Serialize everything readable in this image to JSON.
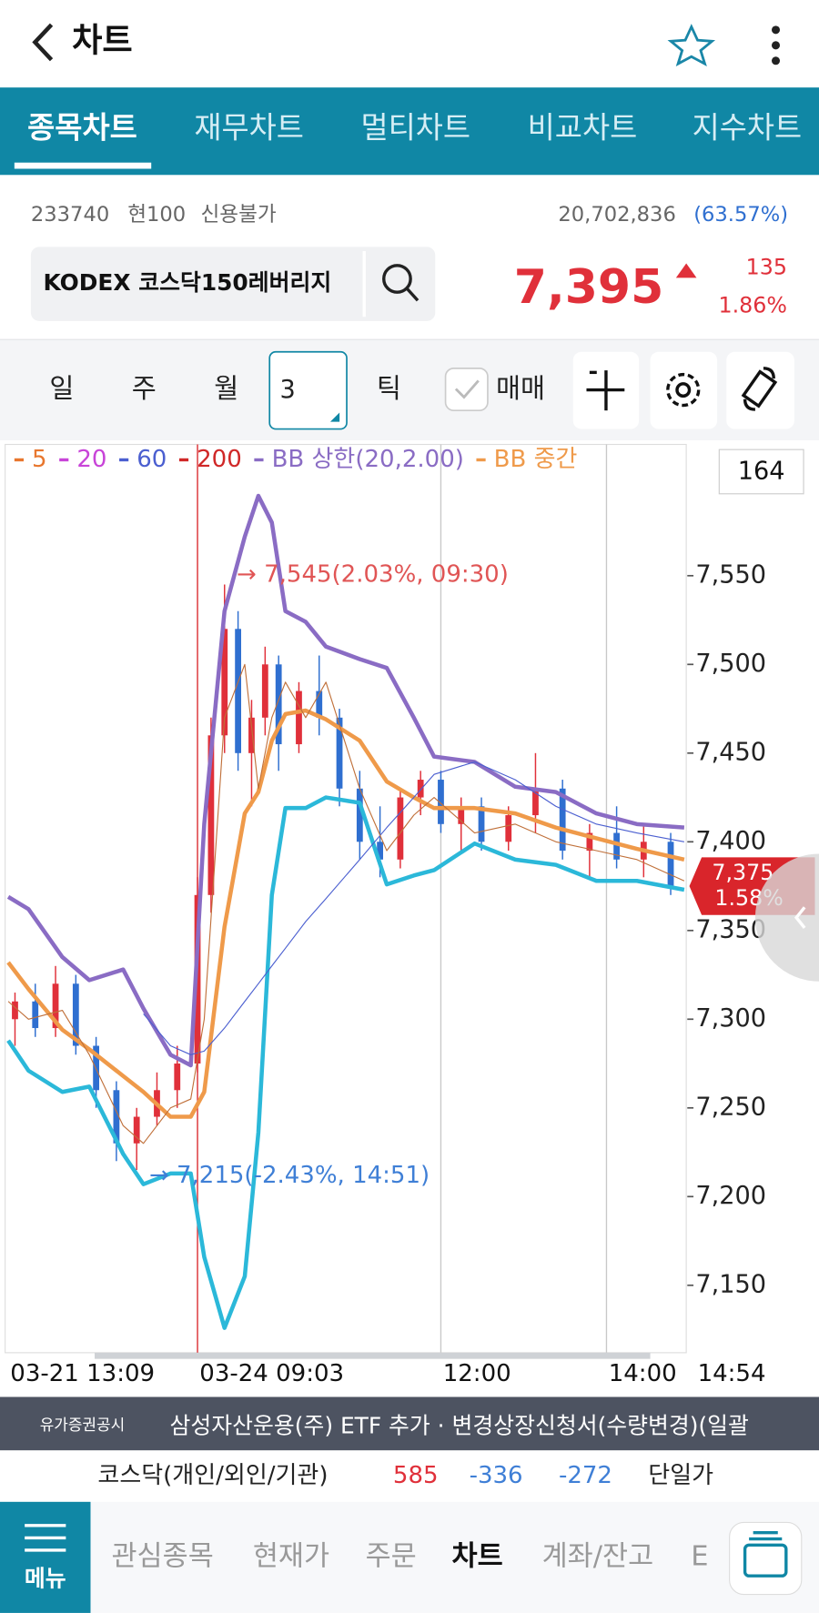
{
  "header": {
    "title": "차트"
  },
  "tabs": [
    "종목차트",
    "재무차트",
    "멀티차트",
    "비교차트",
    "지수차트"
  ],
  "stock": {
    "code": "233740",
    "unit": "현100",
    "credit": "신용불가",
    "volume": "20,702,836",
    "volume_ratio": "(63.57%)",
    "name": "KODEX 코스닥150레버리지",
    "price": "7,395",
    "change": "135",
    "change_pct": "1.86%"
  },
  "periods": [
    "일",
    "주",
    "월",
    "3",
    "틱",
    "매매"
  ],
  "chart_data": {
    "type": "candlestick",
    "count": "164",
    "legend": [
      {
        "name": "5",
        "color": "#e8772e"
      },
      {
        "name": "20",
        "color": "#c844d8"
      },
      {
        "name": "60",
        "color": "#4b5fd0"
      },
      {
        "name": "200",
        "color": "#d02828"
      },
      {
        "name": "BB 상한(20,2.00)",
        "color": "#8a6cc4"
      },
      {
        "name": "BB 중간",
        "color": "#ef9a4a"
      }
    ],
    "xlim": [
      0,
      100
    ],
    "ylim": [
      7112,
      7624
    ],
    "xticks": [
      {
        "value": 0,
        "label": "03-21 13:09"
      },
      {
        "value": 28,
        "label": "03-24 09:03"
      },
      {
        "value": 64,
        "label": "12:00"
      },
      {
        "value": 88.5,
        "label": "14:00"
      },
      {
        "value": 100,
        "label": "14:54"
      }
    ],
    "yticks": [
      {
        "value": 7150,
        "label": "7,150"
      },
      {
        "value": 7200,
        "label": "7,200"
      },
      {
        "value": 7250,
        "label": "7,250"
      },
      {
        "value": 7300,
        "label": "7,300"
      },
      {
        "value": 7350,
        "label": "7,350"
      },
      {
        "value": 7400,
        "label": "7,400"
      },
      {
        "value": 7450,
        "label": "7,450"
      },
      {
        "value": 7500,
        "label": "7,500"
      },
      {
        "value": 7550,
        "label": "7,550"
      }
    ],
    "candles": {
      "up_color": "#e0303a",
      "down_color": "#2f6fd0",
      "x": [
        1,
        4,
        7,
        10,
        13,
        16,
        19,
        22,
        25,
        28,
        30,
        32,
        34,
        36,
        38,
        40,
        43,
        46,
        49,
        52,
        55,
        58,
        61,
        64,
        67,
        70,
        74,
        78,
        82,
        86,
        90,
        94,
        98
      ],
      "open": [
        7300,
        7310,
        7295,
        7320,
        7285,
        7260,
        7230,
        7245,
        7260,
        7275,
        7370,
        7460,
        7520,
        7450,
        7470,
        7500,
        7455,
        7485,
        7470,
        7430,
        7400,
        7390,
        7425,
        7435,
        7410,
        7420,
        7400,
        7415,
        7430,
        7395,
        7405,
        7390,
        7400
      ],
      "high": [
        7315,
        7320,
        7330,
        7325,
        7290,
        7265,
        7250,
        7270,
        7285,
        7380,
        7470,
        7545,
        7530,
        7480,
        7510,
        7505,
        7490,
        7505,
        7475,
        7440,
        7420,
        7430,
        7440,
        7440,
        7425,
        7425,
        7420,
        7450,
        7435,
        7410,
        7420,
        7410,
        7405
      ],
      "low": [
        7285,
        7290,
        7290,
        7280,
        7250,
        7220,
        7215,
        7240,
        7250,
        7270,
        7360,
        7450,
        7440,
        7420,
        7460,
        7440,
        7450,
        7460,
        7420,
        7390,
        7380,
        7385,
        7415,
        7405,
        7395,
        7395,
        7395,
        7405,
        7390,
        7380,
        7385,
        7380,
        7370
      ],
      "close": [
        7310,
        7295,
        7320,
        7285,
        7260,
        7230,
        7245,
        7260,
        7275,
        7370,
        7460,
        7520,
        7450,
        7470,
        7500,
        7455,
        7485,
        7470,
        7430,
        7400,
        7390,
        7425,
        7435,
        7410,
        7420,
        7400,
        7415,
        7430,
        7395,
        7405,
        7390,
        7400,
        7375
      ]
    },
    "x": [
      0,
      3,
      8,
      12,
      17,
      20,
      24,
      27,
      29,
      32,
      35,
      37,
      39,
      41,
      44,
      47,
      52,
      56,
      60,
      63,
      69,
      75,
      81,
      87,
      93,
      100
    ],
    "series": [
      {
        "color": "#8a6cc4",
        "width": 4,
        "values": [
          7369,
          7362,
          7335,
          7322,
          7328,
          7306,
          7280,
          7274,
          7410,
          7530,
          7572,
          7595,
          7580,
          7530,
          7524,
          7510,
          7503,
          7498,
          7470,
          7448,
          7445,
          7431,
          7428,
          7416,
          7410,
          7408
        ]
      },
      {
        "color": "#ef9a4a",
        "width": 4,
        "values": [
          7332,
          7317,
          7294,
          7283,
          7268,
          7259,
          7245,
          7245,
          7259,
          7352,
          7416,
          7428,
          7457,
          7472,
          7474,
          7469,
          7457,
          7434,
          7425,
          7419,
          7419,
          7416,
          7408,
          7402,
          7396,
          7390
        ]
      },
      {
        "color": "#2bb8d9",
        "width": 4,
        "values": [
          7288,
          7271,
          7259,
          7262,
          7224,
          7207,
          7213,
          7213,
          7166,
          7126,
          7155,
          7236,
          7370,
          7419,
          7419,
          7425,
          7422,
          7376,
          7381,
          7384,
          7399,
          7390,
          7387,
          7378,
          7378,
          7373
        ]
      },
      {
        "color": "#4b5fd0",
        "width": 1,
        "values": [
          null,
          null,
          null,
          null,
          null,
          7303,
          7285,
          7280,
          7282,
          7295,
          7310,
          7320,
          7330,
          7340,
          7355,
          7368,
          7390,
          7408,
          7425,
          7438,
          7445,
          7435,
          7420,
          7410,
          7405,
          7400
        ]
      },
      {
        "color": "#c0703a",
        "width": 1,
        "values": [
          7310,
          7300,
          7305,
          7280,
          7240,
          7230,
          7250,
          7255,
          7300,
          7470,
          7500,
          7430,
          7470,
          7490,
          7470,
          7490,
          7430,
          7395,
          7415,
          7425,
          7405,
          7410,
          7400,
          7395,
          7390,
          7378
        ]
      }
    ],
    "annotations": [
      "→ 7,545(2.03%, 09:30)",
      "→ 7,215(-2.43%, 14:51)"
    ],
    "current": {
      "value": 7375,
      "label": "7,375",
      "pct": "1.58%",
      "color": "#d9252b"
    }
  },
  "ticker": {
    "label": "유가증권공시",
    "text": "삼성자산운용(주) ETF 추가 · 변경상장신청서(수량변경)(일괄"
  },
  "investors": {
    "label": "코스닥(개인/외인/기관)",
    "values": [
      "585",
      "-336",
      "-272"
    ],
    "suffix": "단일가"
  },
  "nav": {
    "menu": "메뉴",
    "items": [
      "관심종목",
      "현재가",
      "주문",
      "차트",
      "계좌/잔고",
      "E"
    ]
  }
}
